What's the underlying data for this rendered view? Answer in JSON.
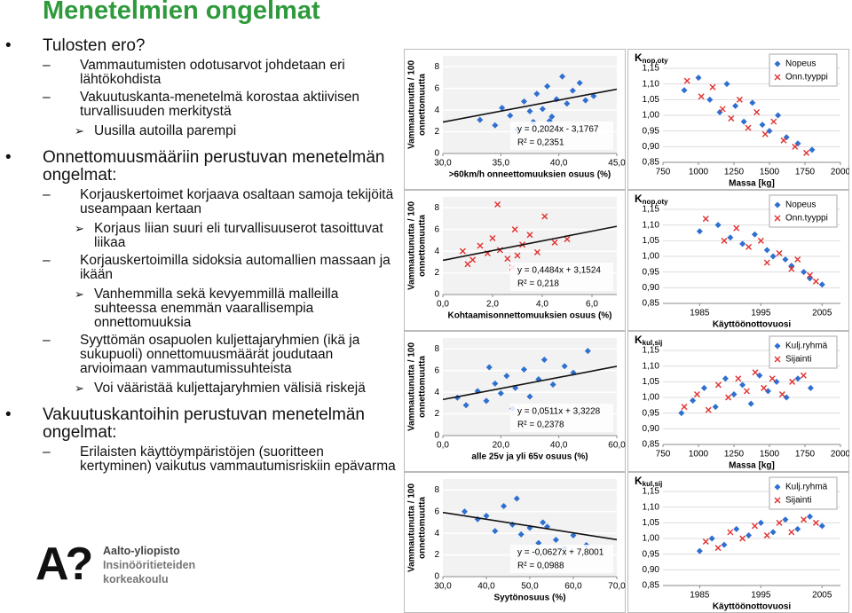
{
  "slide": {
    "title": "Menetelmien ongelmat",
    "items": [
      {
        "level": 1,
        "text": "Tulosten ero?"
      },
      {
        "level": 2,
        "text": "Vammautumisten odotusarvot johdetaan eri lähtökohdista"
      },
      {
        "level": 2,
        "text": "Vakuutuskanta-menetelmä korostaa aktiivisen turvallisuuden merkitystä"
      },
      {
        "level": 3,
        "text": "Uusilla autoilla parempi"
      },
      {
        "level": 1,
        "text": "Onnettomuusmääriin perustuvan menetelmän ongelmat:"
      },
      {
        "level": 2,
        "text": "Korjauskertoimet korjaava osaltaan samoja tekijöitä useampaan kertaan"
      },
      {
        "level": 3,
        "text": "Korjaus liian suuri eli turvallisuuserot tasoittuvat liikaa"
      },
      {
        "level": 2,
        "text": "Korjauskertoimilla sidoksia automallien massaan ja ikään"
      },
      {
        "level": 3,
        "text": "Vanhemmilla sekä kevyemmillä malleilla suhteessa enemmän vaarallisempia onnettomuuksia"
      },
      {
        "level": 2,
        "text": "Syyttömän osapuolen kuljettajaryhmien (ikä ja sukupuoli) onnettomuusmäärät joudutaan arvioimaan vammautumissuhteista"
      },
      {
        "level": 3,
        "text": "Voi vääristää kuljettajaryhmien välisiä riskejä"
      },
      {
        "level": 1,
        "text": "Vakuutuskantoihin perustuvan menetelmän ongelmat:"
      },
      {
        "level": 2,
        "text": "Erilaisten käyttöympäristöjen (suoritteen kertyminen) vaikutus vammautumisriskiin epävarma"
      }
    ],
    "logo": {
      "mark": "A?",
      "lines": [
        "Aalto-yliopisto",
        "Insinööritieteiden",
        "korkeakoulu"
      ]
    }
  },
  "chart_data": [
    {
      "type": "scatter",
      "ylabel": [
        "Vammautunutta / 100",
        "onnettomuutta"
      ],
      "xlabel": ">60km/h onneettomuuksien osuus (%)",
      "xlim": [
        30,
        45
      ],
      "xticks": [
        {
          "value": 30,
          "label": "30,0"
        },
        {
          "value": 35,
          "label": "35,0"
        },
        {
          "value": 40,
          "label": "40,0"
        },
        {
          "value": 45,
          "label": "45,0"
        }
      ],
      "ylim": [
        0,
        9
      ],
      "yticks": [
        0,
        2,
        4,
        6,
        8
      ],
      "grid": true,
      "series": [
        {
          "color": "#2e6fd0",
          "marker": "diamond",
          "x": [
            33.2,
            34.5,
            35.1,
            35.8,
            36.4,
            37.0,
            37.5,
            38.1,
            38.6,
            39.0,
            39.4,
            39.8,
            40.3,
            40.7,
            41.2,
            41.8,
            42.3,
            43.0,
            37.8,
            39.2
          ],
          "values": [
            3.1,
            2.6,
            4.2,
            3.5,
            2.2,
            4.8,
            3.9,
            5.5,
            4.1,
            6.2,
            3.4,
            5.0,
            7.1,
            4.6,
            5.8,
            6.5,
            4.9,
            5.3,
            2.9,
            3.0
          ]
        }
      ],
      "trendline": {
        "slope": 0.2024,
        "intercept": -3.1767,
        "label": "y = 0,2024x - 3,1767"
      },
      "r2_label": "R² = 0,2351"
    },
    {
      "type": "scatter",
      "title": "K",
      "title_sub": "nop,oty",
      "xlabel": "Massa [kg]",
      "xlim": [
        750,
        2000
      ],
      "xticks": [
        750,
        1000,
        1250,
        1500,
        1750,
        2000
      ],
      "ylim": [
        0.85,
        1.15
      ],
      "yticks": [
        {
          "value": 0.85,
          "label": "0,85"
        },
        {
          "value": 0.9,
          "label": "0,90"
        },
        {
          "value": 0.95,
          "label": "0,95"
        },
        {
          "value": 1.0,
          "label": "1,00"
        },
        {
          "value": 1.05,
          "label": "1,05"
        },
        {
          "value": 1.1,
          "label": "1,10"
        },
        {
          "value": 1.15,
          "label": "1,15"
        }
      ],
      "grid": true,
      "series": [
        {
          "name": "Nopeus",
          "color": "#2e6fd0",
          "marker": "diamond",
          "x": [
            900,
            1000,
            1080,
            1150,
            1200,
            1260,
            1320,
            1380,
            1450,
            1500,
            1560,
            1620,
            1700,
            1800
          ],
          "values": [
            1.08,
            1.12,
            1.05,
            1.01,
            1.1,
            1.03,
            0.98,
            1.04,
            0.97,
            0.95,
            1.0,
            0.93,
            0.91,
            0.89
          ]
        },
        {
          "name": "Onn.tyyppi",
          "color": "#e0302f",
          "marker": "x",
          "x": [
            920,
            1020,
            1100,
            1170,
            1230,
            1290,
            1350,
            1410,
            1470,
            1530,
            1600,
            1680,
            1760
          ],
          "values": [
            1.11,
            1.06,
            1.09,
            1.02,
            0.99,
            1.05,
            0.96,
            1.01,
            0.94,
            0.98,
            0.92,
            0.9,
            0.88
          ]
        }
      ]
    },
    {
      "type": "scatter",
      "ylabel": [
        "Vammautunutta / 100",
        "onnettomuutta"
      ],
      "xlabel": "Kohtaamisonnettomuuksien osuus (%)",
      "xlim": [
        0,
        7
      ],
      "xticks": [
        {
          "value": 0,
          "label": "0,0"
        },
        {
          "value": 2,
          "label": "2,0"
        },
        {
          "value": 4,
          "label": "4,0"
        },
        {
          "value": 6,
          "label": "6,0"
        }
      ],
      "ylim": [
        0,
        9
      ],
      "yticks": [
        0,
        2,
        4,
        6,
        8
      ],
      "grid": true,
      "series": [
        {
          "color": "#e0302f",
          "marker": "x",
          "x": [
            0.8,
            1.2,
            1.5,
            1.8,
            2.0,
            2.3,
            2.6,
            2.9,
            3.2,
            3.5,
            3.8,
            4.1,
            4.5,
            5.0,
            1.0,
            2.2,
            3.0,
            2.8
          ],
          "values": [
            4.0,
            3.2,
            4.5,
            3.8,
            5.2,
            4.1,
            3.3,
            6.0,
            4.6,
            5.5,
            3.9,
            7.2,
            4.8,
            5.1,
            2.8,
            8.3,
            3.6,
            2.5
          ]
        }
      ],
      "trendline": {
        "slope": 0.4484,
        "intercept": 3.1524,
        "label": "y = 0,4484x + 3,1524"
      },
      "r2_label": "R² = 0,218"
    },
    {
      "type": "scatter",
      "title": "K",
      "title_sub": "nop,oty",
      "xlabel": "Käyttöönottovuosi",
      "xlim": [
        1979,
        2008
      ],
      "xticks": [
        1985,
        1995,
        2005
      ],
      "ylim": [
        0.85,
        1.15
      ],
      "yticks": [
        {
          "value": 0.85,
          "label": "0,85"
        },
        {
          "value": 0.9,
          "label": "0,90"
        },
        {
          "value": 0.95,
          "label": "0,95"
        },
        {
          "value": 1.0,
          "label": "1,00"
        },
        {
          "value": 1.05,
          "label": "1,05"
        },
        {
          "value": 1.1,
          "label": "1,10"
        },
        {
          "value": 1.15,
          "label": "1,15"
        }
      ],
      "grid": true,
      "series": [
        {
          "name": "Nopeus",
          "color": "#2e6fd0",
          "marker": "diamond",
          "x": [
            1985,
            1988,
            1990,
            1992,
            1994,
            1996,
            1997,
            1999,
            2000,
            2002,
            2003,
            2005
          ],
          "values": [
            1.08,
            1.1,
            1.06,
            1.04,
            1.07,
            1.02,
            1.0,
            0.99,
            0.97,
            0.95,
            0.93,
            0.91
          ]
        },
        {
          "name": "Onn.tyyppi",
          "color": "#e0302f",
          "marker": "x",
          "x": [
            1986,
            1989,
            1991,
            1993,
            1995,
            1996,
            1998,
            2000,
            2001,
            2003,
            2004
          ],
          "values": [
            1.12,
            1.05,
            1.09,
            1.03,
            1.05,
            0.98,
            1.01,
            0.96,
            0.99,
            0.94,
            0.92
          ]
        }
      ]
    },
    {
      "type": "scatter",
      "ylabel": [
        "Vammautunutta / 100",
        "onnettomuutta"
      ],
      "xlabel": "alle 25v ja yli 65v osuus (%)",
      "xlim": [
        0,
        60
      ],
      "xticks": [
        {
          "value": 0,
          "label": "0,0"
        },
        {
          "value": 20,
          "label": "20,0"
        },
        {
          "value": 40,
          "label": "40,0"
        },
        {
          "value": 60,
          "label": "60,0"
        }
      ],
      "ylim": [
        0,
        9
      ],
      "yticks": [
        0,
        2,
        4,
        6,
        8
      ],
      "grid": true,
      "series": [
        {
          "color": "#2e6fd0",
          "marker": "diamond",
          "x": [
            5,
            8,
            12,
            15,
            18,
            20,
            22,
            25,
            28,
            30,
            33,
            35,
            38,
            42,
            45,
            50,
            24,
            16
          ],
          "values": [
            3.5,
            2.8,
            4.1,
            3.2,
            4.8,
            3.9,
            5.5,
            4.4,
            6.1,
            3.6,
            5.2,
            7.0,
            4.7,
            6.4,
            5.8,
            7.8,
            2.5,
            6.3
          ]
        }
      ],
      "trendline": {
        "slope": 0.0511,
        "intercept": 3.3228,
        "label": "y = 0,0511x + 3,3228"
      },
      "r2_label": "R² = 0,2378"
    },
    {
      "type": "scatter",
      "title": "K",
      "title_sub": "kul,sij",
      "xlabel": "Massa [kg]",
      "xlim": [
        750,
        2000
      ],
      "xticks": [
        750,
        1000,
        1250,
        1500,
        1750,
        2000
      ],
      "ylim": [
        0.85,
        1.15
      ],
      "yticks": [
        {
          "value": 0.85,
          "label": "0,85"
        },
        {
          "value": 0.9,
          "label": "0,90"
        },
        {
          "value": 0.95,
          "label": "0,95"
        },
        {
          "value": 1.0,
          "label": "1,00"
        },
        {
          "value": 1.05,
          "label": "1,05"
        },
        {
          "value": 1.1,
          "label": "1,10"
        },
        {
          "value": 1.15,
          "label": "1,15"
        }
      ],
      "grid": true,
      "series": [
        {
          "name": "Kulj.ryhmä",
          "color": "#2e6fd0",
          "marker": "diamond",
          "x": [
            880,
            960,
            1040,
            1120,
            1190,
            1250,
            1310,
            1370,
            1430,
            1490,
            1550,
            1620,
            1700,
            1790
          ],
          "values": [
            0.95,
            0.99,
            1.03,
            0.97,
            1.06,
            1.01,
            1.04,
            0.98,
            1.07,
            1.02,
            1.05,
            1.0,
            1.06,
            1.03
          ]
        },
        {
          "name": "Sijainti",
          "color": "#e0302f",
          "marker": "x",
          "x": [
            900,
            990,
            1070,
            1140,
            1210,
            1280,
            1340,
            1400,
            1460,
            1520,
            1590,
            1660,
            1740
          ],
          "values": [
            0.97,
            1.01,
            0.96,
            1.04,
            1.0,
            1.06,
            1.02,
            1.08,
            1.03,
            1.06,
            1.01,
            1.05,
            1.07
          ]
        }
      ]
    },
    {
      "type": "scatter",
      "ylabel": [
        "Vammautunutta / 100",
        "onnettomuutta"
      ],
      "xlabel": "Syytönosuus (%)",
      "xlim": [
        30,
        70
      ],
      "xticks": [
        {
          "value": 30,
          "label": "30,0"
        },
        {
          "value": 40,
          "label": "40,0"
        },
        {
          "value": 50,
          "label": "50,0"
        },
        {
          "value": 60,
          "label": "60,0"
        },
        {
          "value": 70,
          "label": "70,0"
        }
      ],
      "ylim": [
        0,
        9
      ],
      "yticks": [
        0,
        2,
        4,
        6,
        8
      ],
      "grid": true,
      "series": [
        {
          "color": "#2e6fd0",
          "marker": "diamond",
          "x": [
            35,
            38,
            40,
            42,
            44,
            46,
            48,
            50,
            52,
            54,
            56,
            58,
            60,
            63,
            47,
            53
          ],
          "values": [
            6.0,
            5.3,
            5.6,
            4.2,
            6.5,
            4.8,
            3.9,
            4.5,
            3.1,
            4.6,
            3.4,
            2.6,
            3.8,
            2.9,
            7.2,
            5.0
          ]
        }
      ],
      "trendline": {
        "slope": -0.0627,
        "intercept": 7.8001,
        "label": "y = -0,0627x + 7,8001"
      },
      "r2_label": "R² = 0,0988"
    },
    {
      "type": "scatter",
      "title": "K",
      "title_sub": "kul,sij",
      "xlabel": "Käyttöönottovuosi",
      "xlim": [
        1979,
        2008
      ],
      "xticks": [
        1985,
        1995,
        2005
      ],
      "ylim": [
        0.85,
        1.15
      ],
      "yticks": [
        {
          "value": 0.85,
          "label": "0,85"
        },
        {
          "value": 0.9,
          "label": "0,90"
        },
        {
          "value": 0.95,
          "label": "0,95"
        },
        {
          "value": 1.0,
          "label": "1,00"
        },
        {
          "value": 1.05,
          "label": "1,05"
        },
        {
          "value": 1.1,
          "label": "1,10"
        },
        {
          "value": 1.15,
          "label": "1,15"
        }
      ],
      "grid": true,
      "series": [
        {
          "name": "Kulj.ryhmä",
          "color": "#2e6fd0",
          "marker": "diamond",
          "x": [
            1985,
            1987,
            1989,
            1991,
            1993,
            1995,
            1997,
            1999,
            2001,
            2003,
            2005
          ],
          "values": [
            0.96,
            1.0,
            0.98,
            1.03,
            1.01,
            1.05,
            1.02,
            1.06,
            1.03,
            1.07,
            1.04
          ]
        },
        {
          "name": "Sijainti",
          "color": "#e0302f",
          "marker": "x",
          "x": [
            1986,
            1988,
            1990,
            1992,
            1994,
            1996,
            1998,
            2000,
            2002,
            2004
          ],
          "values": [
            0.99,
            0.97,
            1.02,
            1.0,
            1.04,
            1.01,
            1.05,
            1.02,
            1.06,
            1.05
          ]
        }
      ]
    }
  ]
}
